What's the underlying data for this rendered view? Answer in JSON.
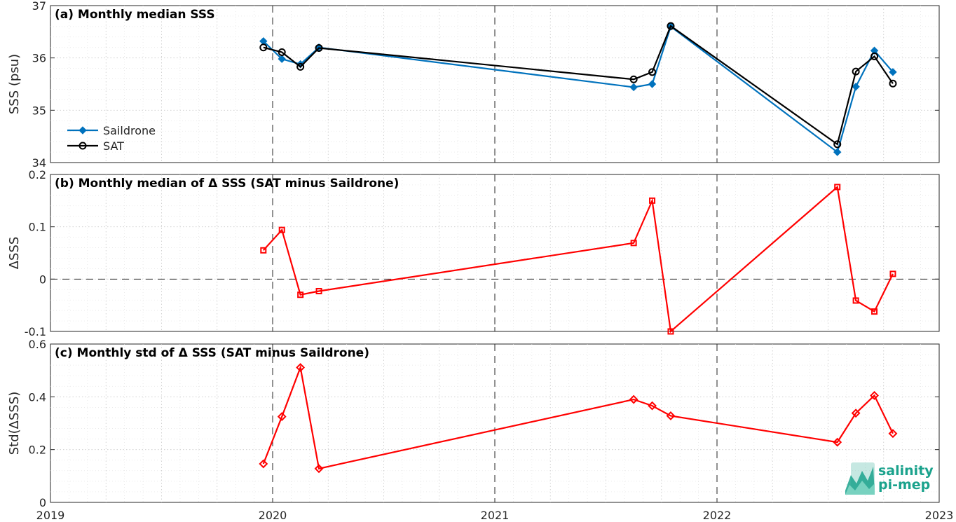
{
  "chart_data": [
    {
      "id": "a",
      "type": "line",
      "title": "(a) Monthly median SSS",
      "ylabel": "SSS (psu)",
      "xlim": [
        2019,
        2023
      ],
      "ylim": [
        34,
        37
      ],
      "yticks": [
        34,
        35,
        36,
        37
      ],
      "ytick_labels": [
        "34",
        "35",
        "36",
        "37"
      ],
      "legend_position": "middle-left",
      "series": [
        {
          "name": "Saildrone",
          "color": "#0072BD",
          "marker": "filled-diamond",
          "x": [
            "2019-12",
            "2020-01",
            "2020-02",
            "2020-03",
            "2021-08",
            "2021-09",
            "2021-10",
            "2022-07",
            "2022-08",
            "2022-09",
            "2022-10"
          ],
          "values": [
            36.32,
            35.98,
            35.88,
            36.2,
            35.44,
            35.5,
            36.6,
            34.2,
            35.45,
            36.14,
            35.73
          ]
        },
        {
          "name": "SAT",
          "color": "#000000",
          "marker": "open-circle",
          "x": [
            "2019-12",
            "2020-01",
            "2020-02",
            "2020-03",
            "2021-08",
            "2021-09",
            "2021-10",
            "2022-07",
            "2022-08",
            "2022-09",
            "2022-10"
          ],
          "values": [
            36.2,
            36.11,
            35.83,
            36.19,
            35.59,
            35.73,
            36.61,
            34.35,
            35.74,
            36.03,
            35.51
          ]
        }
      ]
    },
    {
      "id": "b",
      "type": "line",
      "title": "(b) Monthly median of Δ SSS (SAT minus Saildrone)",
      "ylabel": "ΔSSS",
      "xlim": [
        2019,
        2023
      ],
      "ylim": [
        -0.1,
        0.2
      ],
      "yticks": [
        -0.1,
        0,
        0.1,
        0.2
      ],
      "ytick_labels": [
        "-0.1",
        "0",
        "0.1",
        "0.2"
      ],
      "series": [
        {
          "color": "#ff0000",
          "marker": "open-square",
          "x": [
            "2019-12",
            "2020-01",
            "2020-02",
            "2020-03",
            "2021-08",
            "2021-09",
            "2021-10",
            "2022-07",
            "2022-08",
            "2022-09",
            "2022-10"
          ],
          "values": [
            0.055,
            0.094,
            -0.03,
            -0.023,
            0.069,
            0.15,
            -0.1,
            0.176,
            -0.041,
            -0.062,
            0.01
          ]
        }
      ]
    },
    {
      "id": "c",
      "type": "line",
      "title": "(c) Monthly std of Δ SSS (SAT minus Saildrone)",
      "ylabel": "Std(ΔSSS)",
      "xlim": [
        2019,
        2023
      ],
      "ylim": [
        0,
        0.6
      ],
      "yticks": [
        0,
        0.2,
        0.4,
        0.6
      ],
      "ytick_labels": [
        "0",
        "0.2",
        "0.4",
        "0.6"
      ],
      "xticks": [
        2019,
        2020,
        2021,
        2022,
        2023
      ],
      "xtick_labels": [
        "2019",
        "2020",
        "2021",
        "2022",
        "2023"
      ],
      "series": [
        {
          "color": "#ff0000",
          "marker": "open-diamond",
          "x": [
            "2019-12",
            "2020-01",
            "2020-02",
            "2020-03",
            "2021-08",
            "2021-09",
            "2021-10",
            "2022-07",
            "2022-08",
            "2022-09",
            "2022-10"
          ],
          "values": [
            0.146,
            0.325,
            0.511,
            0.128,
            0.39,
            0.366,
            0.328,
            0.228,
            0.338,
            0.405,
            0.261
          ]
        }
      ]
    }
  ],
  "logo": {
    "line1": "salinity",
    "line2": "pi-mep",
    "color": "#1aa28c"
  }
}
